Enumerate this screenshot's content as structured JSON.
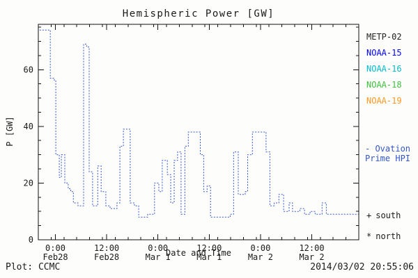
{
  "chart_data": {
    "type": "line",
    "title": "Hemispheric Power [GW]",
    "xlabel": "Date and Time",
    "ylabel": "P [GW]",
    "xlim": [
      0,
      75
    ],
    "ylim": [
      0,
      76
    ],
    "grid": false,
    "line_style": "fine-dashed step line",
    "legend_position": "right",
    "xticks": [
      {
        "t": 4,
        "l1": "0:00",
        "l2": "Feb28"
      },
      {
        "t": 16,
        "l1": "12:00",
        "l2": "Feb28"
      },
      {
        "t": 28,
        "l1": "0:00",
        "l2": "Mar 1"
      },
      {
        "t": 40,
        "l1": "12:00",
        "l2": "Mar 1"
      },
      {
        "t": 52,
        "l1": "0:00",
        "l2": "Mar 2"
      },
      {
        "t": 64,
        "l1": "12:00",
        "l2": "Mar 2"
      }
    ],
    "x_minor_step": 3,
    "yticks": [
      {
        "v": 0,
        "label": "0"
      },
      {
        "v": 20,
        "label": "20"
      },
      {
        "v": 40,
        "label": "40"
      },
      {
        "v": 60,
        "label": "60"
      }
    ],
    "y_minor_step": 5,
    "series": [
      {
        "name": "Ovation Prime HPI",
        "color": "#3355cc",
        "steps": [
          [
            0.3,
            74
          ],
          [
            2.8,
            57
          ],
          [
            3.75,
            56
          ],
          [
            4.1,
            30
          ],
          [
            4.9,
            22
          ],
          [
            5.4,
            30
          ],
          [
            6.2,
            20
          ],
          [
            7.0,
            18
          ],
          [
            7.6,
            17
          ],
          [
            8.2,
            13
          ],
          [
            9.3,
            12
          ],
          [
            10.6,
            69
          ],
          [
            11.3,
            68
          ],
          [
            11.9,
            24
          ],
          [
            12.7,
            12
          ],
          [
            13.9,
            26
          ],
          [
            14.7,
            17
          ],
          [
            15.8,
            12
          ],
          [
            16.8,
            11
          ],
          [
            18.4,
            13
          ],
          [
            19.1,
            33
          ],
          [
            19.9,
            39
          ],
          [
            21.5,
            13
          ],
          [
            22.5,
            12
          ],
          [
            23.5,
            8
          ],
          [
            25.6,
            9
          ],
          [
            27.2,
            20
          ],
          [
            28.2,
            17
          ],
          [
            29.0,
            28
          ],
          [
            30.2,
            23
          ],
          [
            31.0,
            13
          ],
          [
            31.8,
            28
          ],
          [
            32.6,
            31
          ],
          [
            33.4,
            9
          ],
          [
            34.3,
            33
          ],
          [
            35.1,
            38
          ],
          [
            37.9,
            30
          ],
          [
            38.7,
            17
          ],
          [
            39.5,
            19
          ],
          [
            40.3,
            8
          ],
          [
            41.5,
            8
          ],
          [
            44.9,
            9
          ],
          [
            45.7,
            31
          ],
          [
            46.8,
            16
          ],
          [
            48.4,
            17
          ],
          [
            49.0,
            30
          ],
          [
            50.1,
            38
          ],
          [
            53.3,
            31
          ],
          [
            54.2,
            12
          ],
          [
            55.2,
            13
          ],
          [
            56.3,
            16
          ],
          [
            57.4,
            10
          ],
          [
            58.7,
            13
          ],
          [
            59.5,
            10
          ],
          [
            61.2,
            11
          ],
          [
            62.3,
            9
          ],
          [
            63.6,
            10
          ],
          [
            64.8,
            9
          ],
          [
            66.4,
            13
          ],
          [
            67.4,
            9
          ],
          [
            69.0,
            9
          ]
        ]
      }
    ]
  },
  "legend": {
    "satellites": [
      {
        "label": "METP-02",
        "color": "#222222"
      },
      {
        "label": "NOAA-15",
        "color": "#0000ee"
      },
      {
        "label": "NOAA-16",
        "color": "#00bbcc"
      },
      {
        "label": "NOAA-18",
        "color": "#3fbf3f"
      },
      {
        "label": "NOAA-19",
        "color": "#ff9922"
      }
    ],
    "ovation": {
      "line1": "- Ovation",
      "line2": "Prime HPI",
      "color": "#3355cc"
    },
    "markers": [
      {
        "symbol": "+",
        "label": "south"
      },
      {
        "symbol": "*",
        "label": "north"
      }
    ]
  },
  "footer": {
    "left": "Plot: CCMC",
    "right": "2014/03/02 20:55:06"
  }
}
